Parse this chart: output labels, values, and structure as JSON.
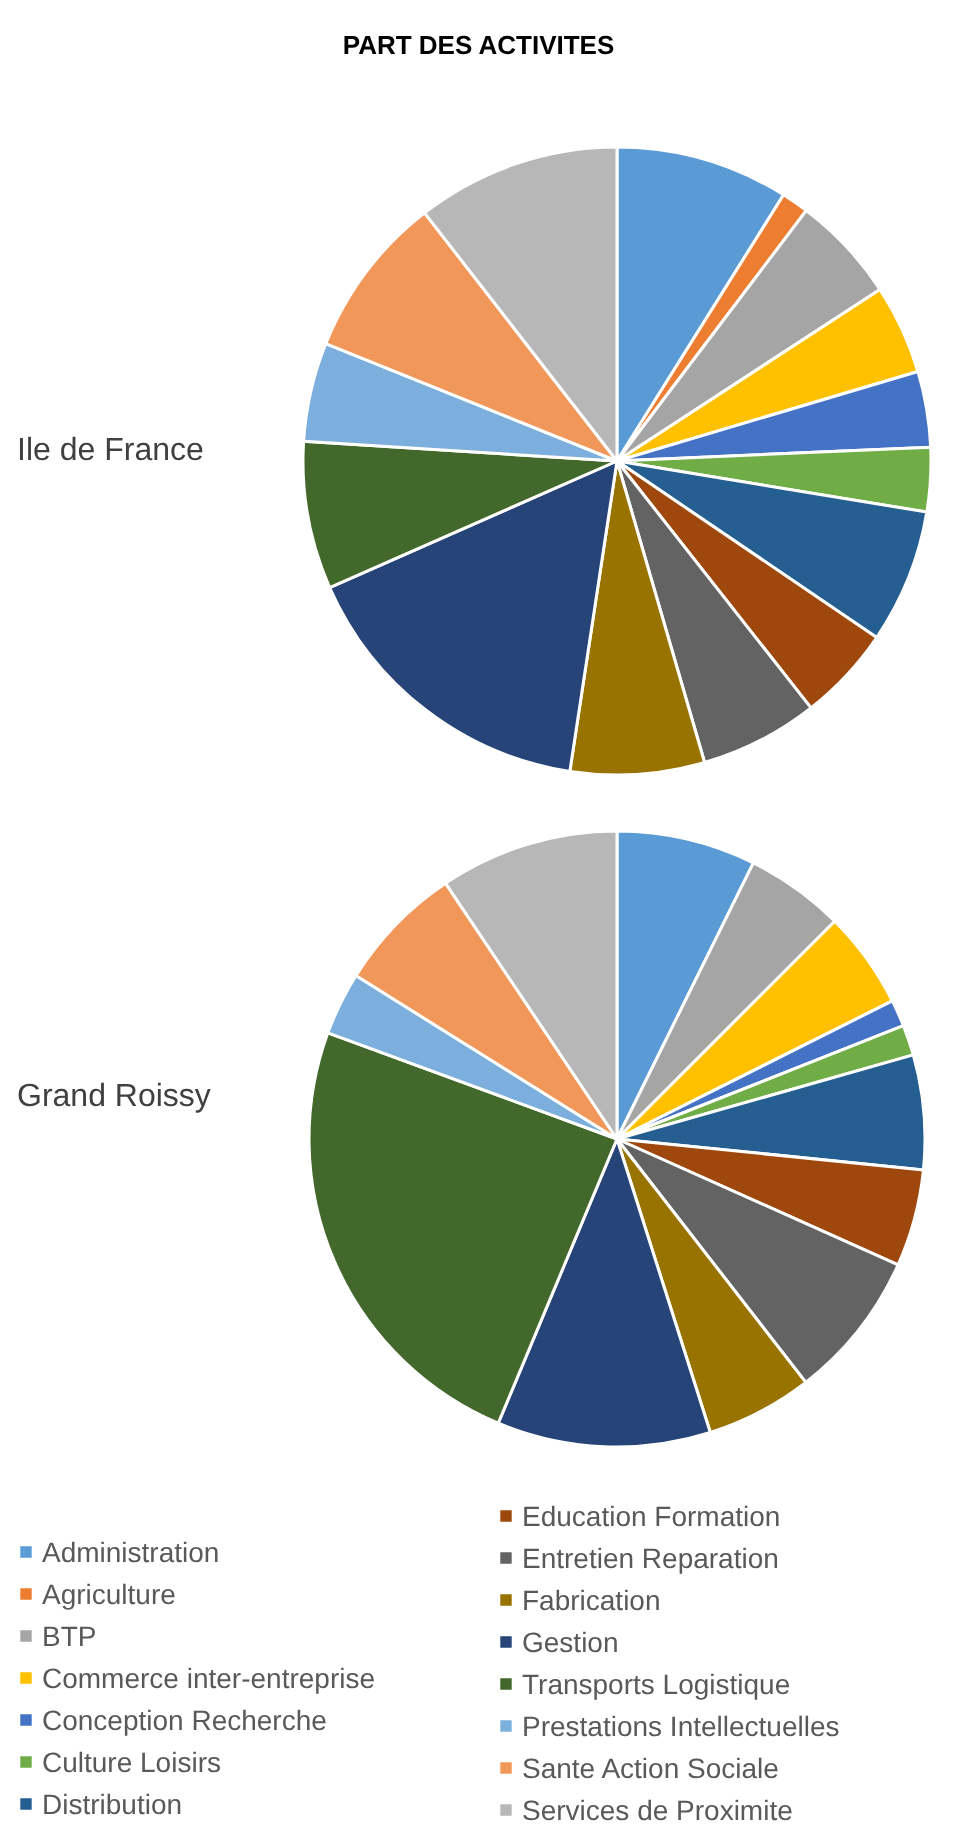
{
  "chart_data": {
    "type": "pie",
    "title": "PART DES ACTIVITES",
    "legend": "bottom",
    "categories": [
      "Administration",
      "Agriculture",
      "BTP",
      "Commerce inter-entreprise",
      "Conception Recherche",
      "Culture Loisirs",
      "Distribution",
      "Education Formation",
      "Entretien Reparation",
      "Fabrication",
      "Gestion",
      "Transports Logistique",
      "Prestations Intellectuelles",
      "Sante Action Sociale",
      "Services de Proximite"
    ],
    "colors": [
      "#5b9bd5",
      "#ed7d31",
      "#a5a5a5",
      "#ffc000",
      "#4472c4",
      "#70ad47",
      "#255e91",
      "#9e480e",
      "#636363",
      "#997300",
      "#264478",
      "#43682b",
      "#7cafdd",
      "#f1975a",
      "#b7b7b7"
    ],
    "series": [
      {
        "name": "Ile de France",
        "values": [
          8.9,
          1.4,
          5.5,
          4.6,
          3.9,
          3.3,
          6.9,
          4.9,
          6.1,
          6.9,
          16.0,
          7.6,
          5.1,
          8.4,
          10.5
        ]
      },
      {
        "name": "Grand Roissy",
        "values": [
          7.3,
          0,
          5.2,
          5.1,
          1.4,
          1.6,
          6.0,
          5.1,
          7.8,
          5.6,
          11.2,
          24.3,
          3.3,
          6.7,
          9.4
        ]
      }
    ]
  }
}
